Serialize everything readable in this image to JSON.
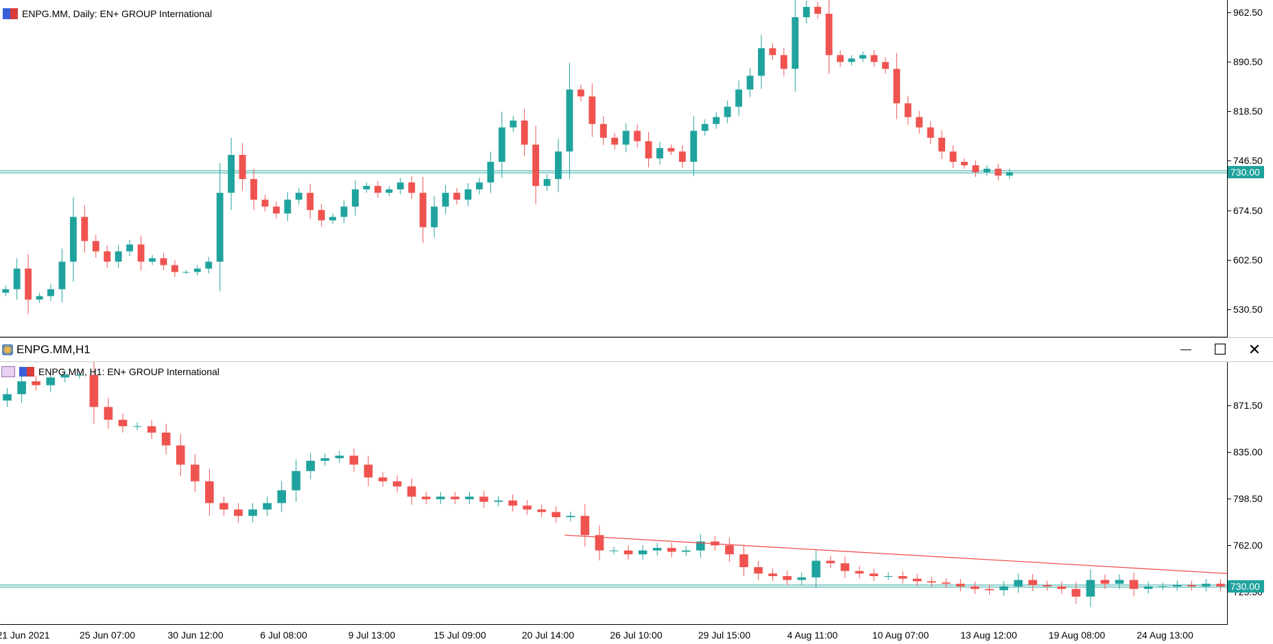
{
  "top_chart": {
    "title": "ENPG.MM, Daily:  EN+ GROUP International",
    "y_ticks": [
      "962.50",
      "890.50",
      "818.50",
      "746.50",
      "674.50",
      "602.50",
      "530.50"
    ],
    "current_price": "730.00",
    "colors": {
      "up": "#20a39e",
      "down": "#ef5350",
      "level": "#20a39e"
    }
  },
  "window": {
    "title": "ENPG.MM,H1",
    "minimize_label": "—",
    "maximize_label": "☐",
    "close_label": "✕"
  },
  "bottom_chart": {
    "title": "ENPG.MM, H1:  EN+ GROUP International",
    "y_ticks": [
      "871.50",
      "835.00",
      "798.50",
      "762.00",
      "725.50"
    ],
    "current_price": "730.00",
    "x_ticks": [
      "21 Jun 2021",
      "25 Jun 07:00",
      "30 Jun 12:00",
      "6 Jul 08:00",
      "9 Jul 13:00",
      "15 Jul 09:00",
      "20 Jul 14:00",
      "26 Jul 10:00",
      "29 Jul 15:00",
      "4 Aug 11:00",
      "10 Aug 07:00",
      "13 Aug 12:00",
      "19 Aug 08:00",
      "24 Aug 13:00"
    ]
  },
  "chart_data": [
    {
      "type": "line",
      "title": "ENPG.MM, Daily:  EN+ GROUP International",
      "ylim": [
        490,
        980
      ],
      "horizontal_line": 730,
      "series": [
        {
          "name": "ENPG.MM, Daily",
          "values": [
            560,
            590,
            545,
            550,
            560,
            600,
            665,
            630,
            615,
            600,
            615,
            625,
            600,
            605,
            595,
            585,
            585,
            590,
            600,
            700,
            755,
            720,
            690,
            680,
            670,
            690,
            700,
            675,
            660,
            665,
            680,
            705,
            710,
            700,
            705,
            715,
            700,
            650,
            680,
            700,
            690,
            705,
            715,
            745,
            795,
            805,
            770,
            710,
            720,
            760,
            850,
            840,
            800,
            780,
            770,
            790,
            775,
            750,
            765,
            760,
            745,
            790,
            800,
            810,
            825,
            850,
            870,
            910,
            900,
            880,
            955,
            970,
            960,
            900,
            890,
            895,
            900,
            890,
            880,
            830,
            810,
            795,
            780,
            760,
            745,
            740,
            730,
            735,
            725,
            730
          ]
        }
      ]
    },
    {
      "type": "line",
      "title": "ENPG.MM, H1:  EN+ GROUP International",
      "ylim": [
        700,
        905
      ],
      "horizontal_line": 730,
      "trendline": [
        [
          0.46,
          770
        ],
        [
          1.0,
          740
        ]
      ],
      "series": [
        {
          "name": "ENPG.MM, H1",
          "values": [
            880,
            890,
            887,
            893,
            895,
            895,
            870,
            860,
            855,
            855,
            850,
            840,
            825,
            812,
            795,
            790,
            785,
            790,
            795,
            805,
            820,
            828,
            830,
            832,
            825,
            815,
            812,
            808,
            800,
            798,
            800,
            798,
            800,
            796,
            797,
            793,
            790,
            788,
            784,
            785,
            770,
            758,
            758,
            755,
            758,
            760,
            757,
            758,
            765,
            762,
            755,
            745,
            740,
            738,
            735,
            737,
            750,
            748,
            742,
            740,
            738,
            738,
            736,
            734,
            733,
            732,
            730,
            728,
            727,
            730,
            735,
            731,
            730,
            728,
            722,
            735,
            732,
            735,
            728,
            730,
            730,
            731,
            730,
            732,
            730
          ]
        }
      ]
    }
  ]
}
